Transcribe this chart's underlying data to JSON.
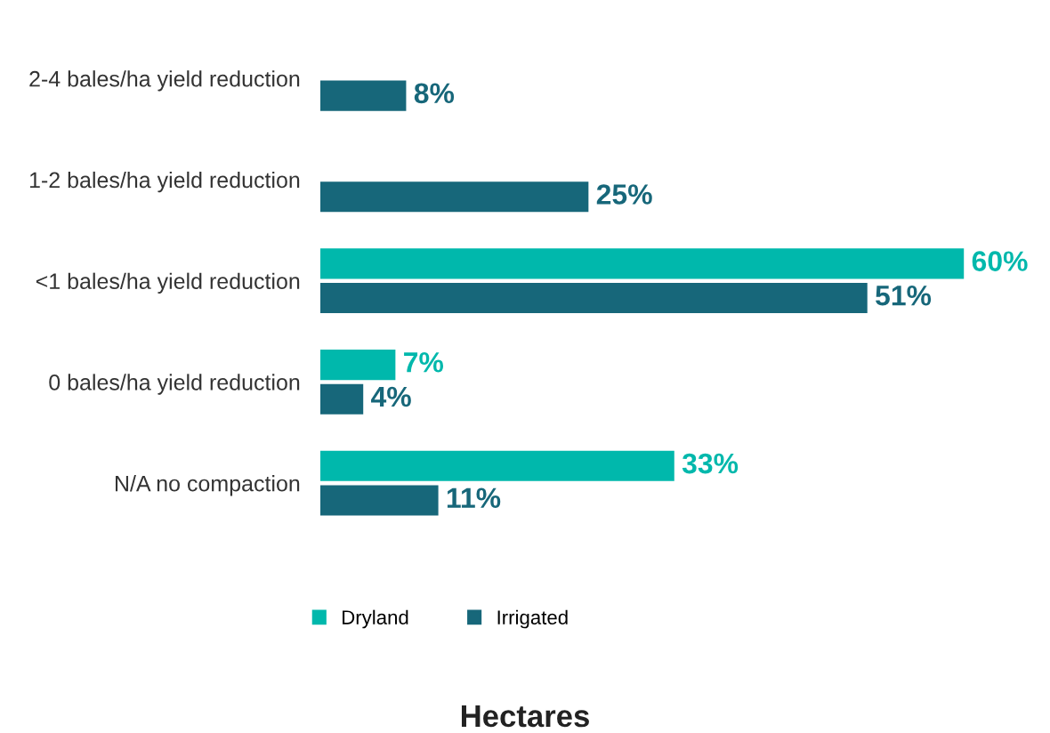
{
  "chart_data": {
    "type": "bar",
    "orientation": "horizontal",
    "annotations": [
      "Hectares"
    ],
    "categories": [
      "2-4 bales/ha yield reduction",
      "1-2 bales/ha yield reduction",
      "<1 bales/ha yield reduction",
      "0 bales/ha yield reduction",
      "N/A no compaction"
    ],
    "series": [
      {
        "name": "Dryland",
        "color": "#00b8ac",
        "values": [
          null,
          null,
          60,
          7,
          33
        ],
        "value_labels": [
          null,
          null,
          "60%",
          "7%",
          "33%"
        ]
      },
      {
        "name": "Irrigated",
        "color": "#17677a",
        "values": [
          8,
          25,
          51,
          4,
          11
        ],
        "value_labels": [
          "8%",
          "25%",
          "51%",
          "4%",
          "11%"
        ]
      }
    ],
    "legend": "bottom",
    "grid": false
  }
}
